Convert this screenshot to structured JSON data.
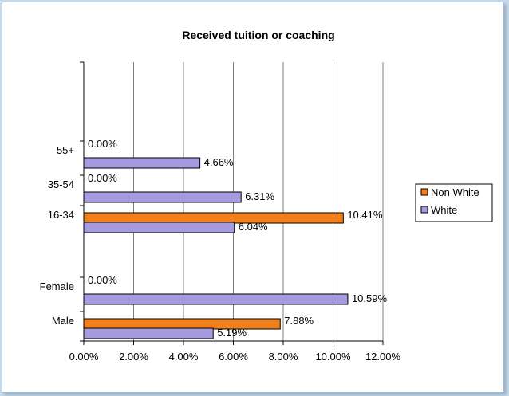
{
  "chart_data": {
    "type": "bar",
    "orientation": "horizontal",
    "title": "Received tuition or coaching",
    "categories": [
      "55+",
      "35-54",
      "16-34",
      "Female",
      "Male"
    ],
    "series": [
      {
        "name": "Non White",
        "color": "#f07f1e",
        "values": [
          0.0,
          0.0,
          10.41,
          0.0,
          7.88
        ],
        "labels": [
          "0.00%",
          "0.00%",
          "10.41%",
          "0.00%",
          "7.88%"
        ]
      },
      {
        "name": "White",
        "color": "#a59bde",
        "values": [
          4.66,
          6.31,
          6.04,
          10.59,
          5.19
        ],
        "labels": [
          "4.66%",
          "6.31%",
          "6.04%",
          "10.59%",
          "5.19%"
        ]
      }
    ],
    "xlim": [
      0,
      12
    ],
    "x_ticks": [
      "0.00%",
      "2.00%",
      "4.00%",
      "6.00%",
      "8.00%",
      "10.00%",
      "12.00%"
    ],
    "grid": true,
    "legend_position": "right"
  }
}
